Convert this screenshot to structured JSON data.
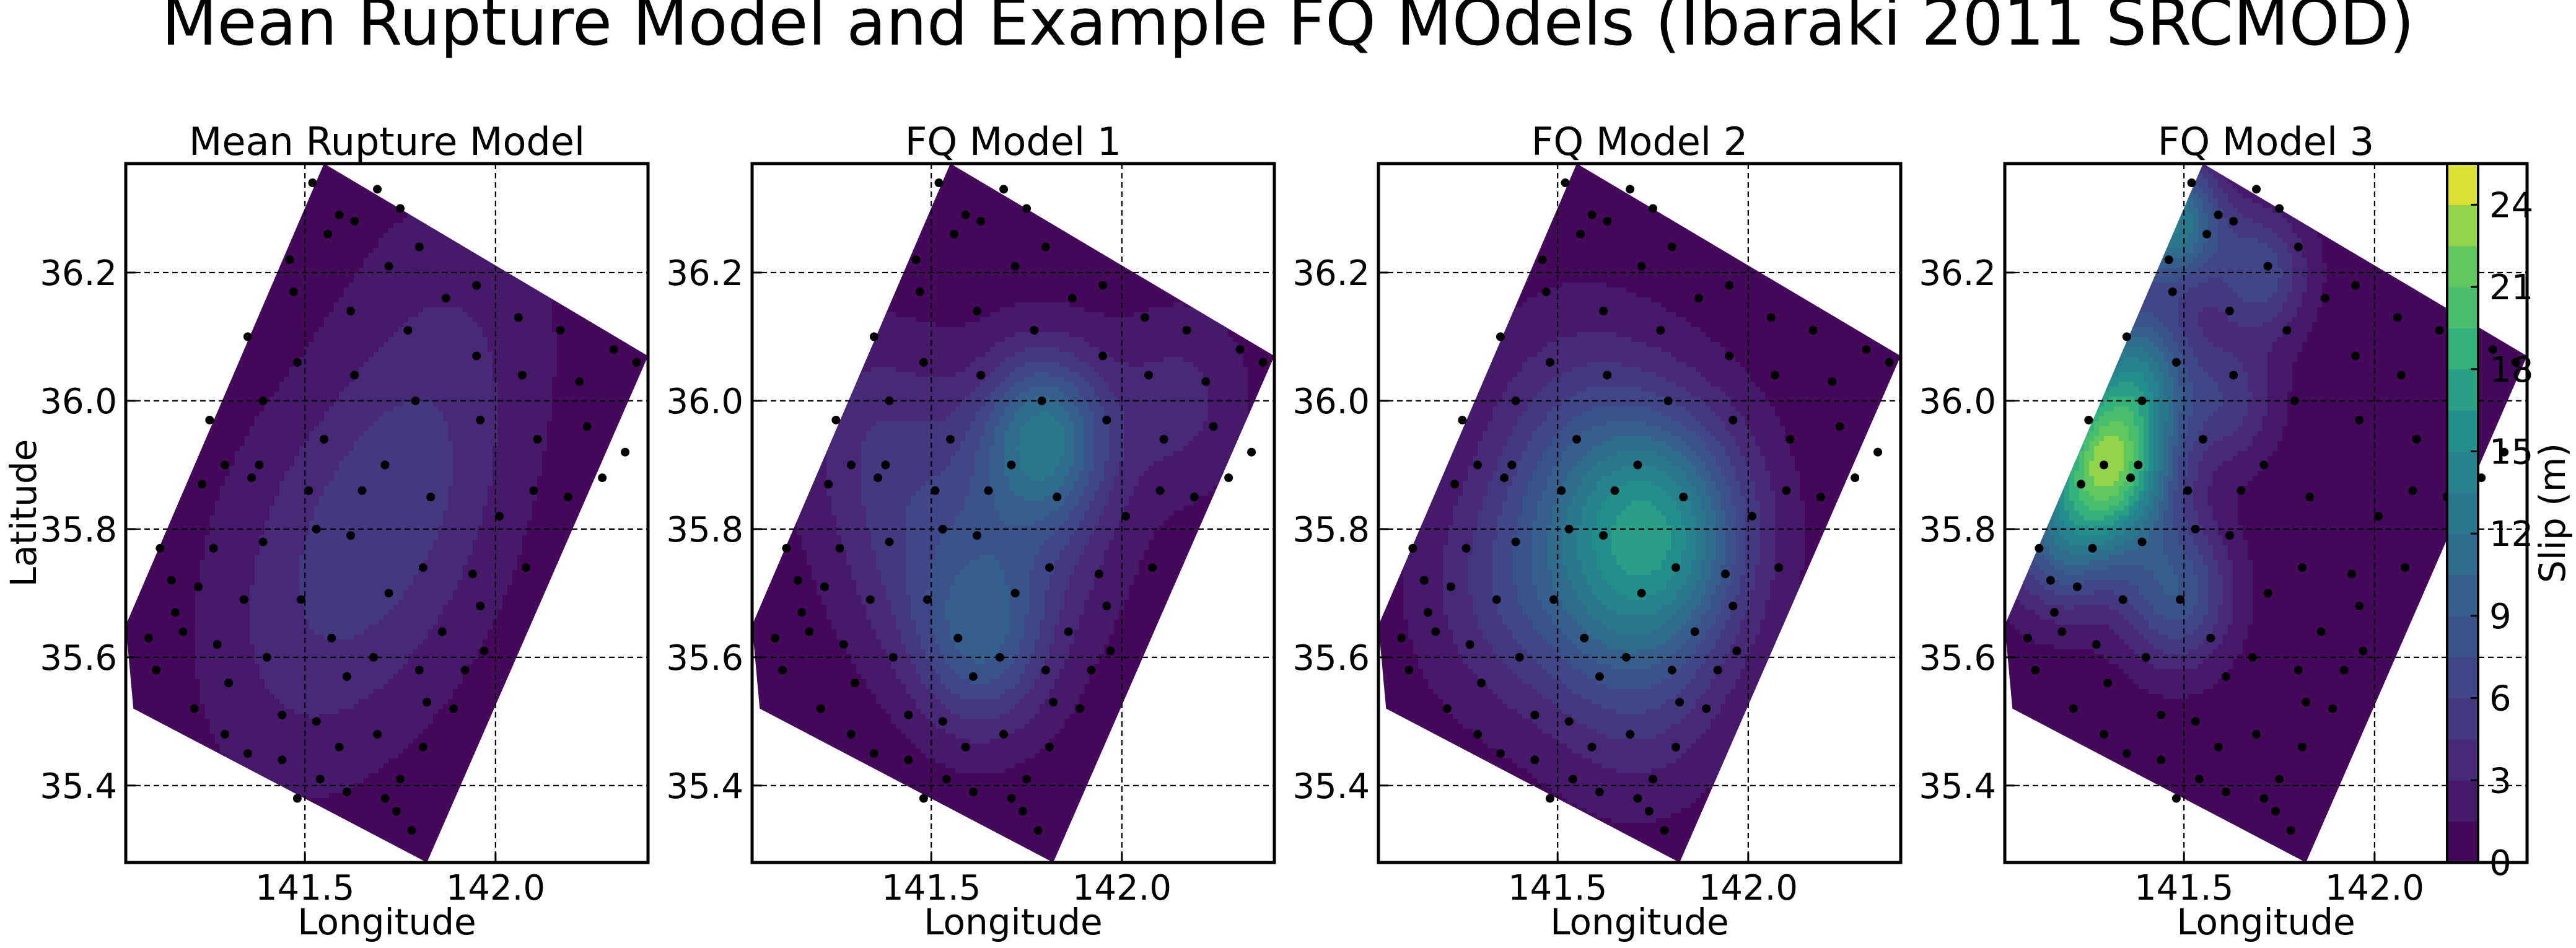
{
  "figure": {
    "title": "Mean Rupture Model and Example FQ MOdels (Ibaraki 2011 SRCMOD)"
  },
  "colorbar": {
    "label": "Slip (m)",
    "ticks": [
      "0",
      "3",
      "6",
      "9",
      "12",
      "15",
      "18",
      "21",
      "24"
    ],
    "tick_values": [
      0,
      3,
      6,
      9,
      12,
      15,
      18,
      21,
      24
    ],
    "range": [
      0,
      25.5
    ],
    "levels": 17,
    "colormap": "viridis"
  },
  "chart_data": [
    {
      "type": "contour",
      "title": "Mean Rupture Model",
      "xlabel": "Longitude",
      "ylabel": "Latitude",
      "xlim": [
        141.03,
        142.4
      ],
      "ylim": [
        35.28,
        36.37
      ],
      "xticks": [
        "141.5",
        "142.0"
      ],
      "yticks": [
        "35.4",
        "35.6",
        "35.8",
        "36.0",
        "36.2"
      ],
      "grid": true,
      "fault_outline": [
        [
          141.55,
          36.37
        ],
        [
          142.4,
          36.07
        ],
        [
          141.82,
          35.28
        ],
        [
          141.05,
          35.52
        ],
        [
          141.03,
          35.65
        ]
      ],
      "slip_peaks": [
        {
          "lon": 141.62,
          "lat": 35.75,
          "slip": 3.8,
          "r": 0.17
        },
        {
          "lon": 141.8,
          "lat": 35.9,
          "slip": 2.3,
          "r": 0.14
        },
        {
          "lon": 141.9,
          "lat": 36.12,
          "slip": 2.0,
          "r": 0.16
        },
        {
          "lon": 141.45,
          "lat": 35.55,
          "slip": 1.4,
          "r": 0.15
        }
      ]
    },
    {
      "type": "contour",
      "title": "FQ Model 1",
      "xlabel": "Longitude",
      "xlim": [
        141.03,
        142.4
      ],
      "ylim": [
        35.28,
        36.37
      ],
      "xticks": [
        "141.5",
        "142.0"
      ],
      "yticks": [
        "35.4",
        "35.6",
        "35.8",
        "36.0",
        "36.2"
      ],
      "grid": true,
      "fault_outline": [
        [
          141.55,
          36.37
        ],
        [
          142.4,
          36.07
        ],
        [
          141.82,
          35.28
        ],
        [
          141.05,
          35.52
        ],
        [
          141.03,
          35.65
        ]
      ],
      "slip_peaks": [
        {
          "lon": 141.8,
          "lat": 35.95,
          "slip": 9.5,
          "r": 0.09
        },
        {
          "lon": 141.63,
          "lat": 35.62,
          "slip": 7.0,
          "r": 0.1
        },
        {
          "lon": 141.73,
          "lat": 35.82,
          "slip": 5.0,
          "r": 0.14
        },
        {
          "lon": 141.35,
          "lat": 35.95,
          "slip": 3.2,
          "r": 0.12
        },
        {
          "lon": 142.15,
          "lat": 36.0,
          "slip": 3.0,
          "r": 0.1
        },
        {
          "lon": 141.45,
          "lat": 35.75,
          "slip": 3.0,
          "r": 0.12
        }
      ]
    },
    {
      "type": "contour",
      "title": "FQ Model 2",
      "xlabel": "Longitude",
      "xlim": [
        141.03,
        142.4
      ],
      "ylim": [
        35.28,
        36.37
      ],
      "xticks": [
        "141.5",
        "142.0"
      ],
      "yticks": [
        "35.4",
        "35.6",
        "35.8",
        "36.0",
        "36.2"
      ],
      "grid": true,
      "fault_outline": [
        [
          141.55,
          36.37
        ],
        [
          142.4,
          36.07
        ],
        [
          141.82,
          35.28
        ],
        [
          141.05,
          35.52
        ],
        [
          141.03,
          35.65
        ]
      ],
      "slip_peaks": [
        {
          "lon": 141.78,
          "lat": 35.8,
          "slip": 11.5,
          "r": 0.13
        },
        {
          "lon": 141.6,
          "lat": 35.74,
          "slip": 6.0,
          "r": 0.15
        },
        {
          "lon": 141.55,
          "lat": 35.95,
          "slip": 3.5,
          "r": 0.14
        },
        {
          "lon": 141.35,
          "lat": 35.7,
          "slip": 2.8,
          "r": 0.13
        },
        {
          "lon": 141.72,
          "lat": 35.55,
          "slip": 3.0,
          "r": 0.13
        }
      ]
    },
    {
      "type": "contour",
      "title": "FQ Model 3",
      "xlabel": "Longitude",
      "xlim": [
        141.03,
        142.4
      ],
      "ylim": [
        35.28,
        36.37
      ],
      "xticks": [
        "141.5",
        "142.0"
      ],
      "yticks": [
        "35.4",
        "35.6",
        "35.8",
        "36.0",
        "36.2"
      ],
      "grid": true,
      "fault_outline": [
        [
          141.55,
          36.37
        ],
        [
          142.4,
          36.07
        ],
        [
          141.82,
          35.28
        ],
        [
          141.05,
          35.52
        ],
        [
          141.03,
          35.65
        ]
      ],
      "slip_peaks": [
        {
          "lon": 141.3,
          "lat": 35.9,
          "slip": 21.0,
          "r": 0.09
        },
        {
          "lon": 141.38,
          "lat": 36.05,
          "slip": 10.0,
          "r": 0.08
        },
        {
          "lon": 141.47,
          "lat": 36.28,
          "slip": 13.0,
          "r": 0.07
        },
        {
          "lon": 141.48,
          "lat": 35.7,
          "slip": 8.0,
          "r": 0.08
        },
        {
          "lon": 141.17,
          "lat": 35.78,
          "slip": 7.5,
          "r": 0.08
        },
        {
          "lon": 141.7,
          "lat": 36.2,
          "slip": 6.5,
          "r": 0.07
        },
        {
          "lon": 141.62,
          "lat": 36.0,
          "slip": 4.5,
          "r": 0.07
        }
      ]
    }
  ],
  "subfault_points": [
    [
      141.29,
      35.48
    ],
    [
      141.44,
      35.44
    ],
    [
      141.35,
      35.45
    ],
    [
      141.54,
      35.41
    ],
    [
      141.53,
      35.5
    ],
    [
      141.21,
      35.52
    ],
    [
      141.11,
      35.58
    ],
    [
      141.09,
      35.63
    ],
    [
      141.18,
      35.64
    ],
    [
      141.27,
      35.62
    ],
    [
      141.4,
      35.6
    ],
    [
      141.44,
      35.51
    ],
    [
      141.59,
      35.46
    ],
    [
      141.61,
      35.57
    ],
    [
      141.69,
      35.48
    ],
    [
      141.71,
      35.38
    ],
    [
      141.74,
      35.36
    ],
    [
      141.78,
      35.33
    ],
    [
      141.61,
      35.39
    ],
    [
      141.48,
      35.38
    ],
    [
      141.75,
      35.41
    ],
    [
      141.81,
      35.46
    ],
    [
      141.82,
      35.53
    ],
    [
      141.8,
      35.58
    ],
    [
      141.68,
      35.6
    ],
    [
      141.57,
      35.63
    ],
    [
      141.49,
      35.69
    ],
    [
      141.34,
      35.69
    ],
    [
      141.22,
      35.71
    ],
    [
      141.15,
      35.72
    ],
    [
      141.12,
      35.77
    ],
    [
      141.26,
      35.77
    ],
    [
      141.39,
      35.78
    ],
    [
      141.53,
      35.8
    ],
    [
      141.62,
      35.79
    ],
    [
      141.72,
      35.7
    ],
    [
      141.86,
      35.64
    ],
    [
      141.96,
      35.68
    ],
    [
      141.94,
      35.73
    ],
    [
      141.81,
      35.74
    ],
    [
      141.65,
      35.86
    ],
    [
      141.51,
      35.86
    ],
    [
      141.36,
      35.88
    ],
    [
      141.29,
      35.9
    ],
    [
      141.23,
      35.87
    ],
    [
      141.25,
      35.97
    ],
    [
      141.39,
      36.0
    ],
    [
      141.55,
      35.94
    ],
    [
      141.71,
      35.9
    ],
    [
      141.83,
      35.85
    ],
    [
      142.01,
      35.82
    ],
    [
      142.1,
      35.86
    ],
    [
      142.19,
      35.85
    ],
    [
      142.28,
      35.88
    ],
    [
      142.34,
      35.92
    ],
    [
      142.24,
      35.96
    ],
    [
      142.11,
      35.94
    ],
    [
      141.96,
      35.97
    ],
    [
      141.79,
      36.0
    ],
    [
      141.63,
      36.04
    ],
    [
      141.48,
      36.06
    ],
    [
      141.35,
      36.1
    ],
    [
      141.47,
      36.17
    ],
    [
      141.62,
      36.14
    ],
    [
      141.77,
      36.11
    ],
    [
      141.95,
      36.07
    ],
    [
      142.07,
      36.04
    ],
    [
      142.22,
      36.03
    ],
    [
      142.31,
      36.08
    ],
    [
      142.37,
      36.06
    ],
    [
      142.17,
      36.11
    ],
    [
      142.06,
      36.13
    ],
    [
      141.87,
      36.16
    ],
    [
      141.72,
      36.21
    ],
    [
      141.56,
      36.26
    ],
    [
      141.46,
      36.22
    ],
    [
      141.63,
      36.28
    ],
    [
      141.75,
      36.3
    ],
    [
      141.8,
      36.24
    ],
    [
      141.95,
      36.18
    ],
    [
      141.52,
      36.34
    ],
    [
      141.69,
      36.33
    ],
    [
      141.59,
      36.29
    ],
    [
      142.08,
      35.74
    ],
    [
      141.97,
      35.61
    ],
    [
      141.89,
      35.52
    ],
    [
      141.92,
      35.58
    ],
    [
      141.3,
      35.56
    ],
    [
      141.16,
      35.67
    ],
    [
      141.38,
      35.9
    ]
  ]
}
